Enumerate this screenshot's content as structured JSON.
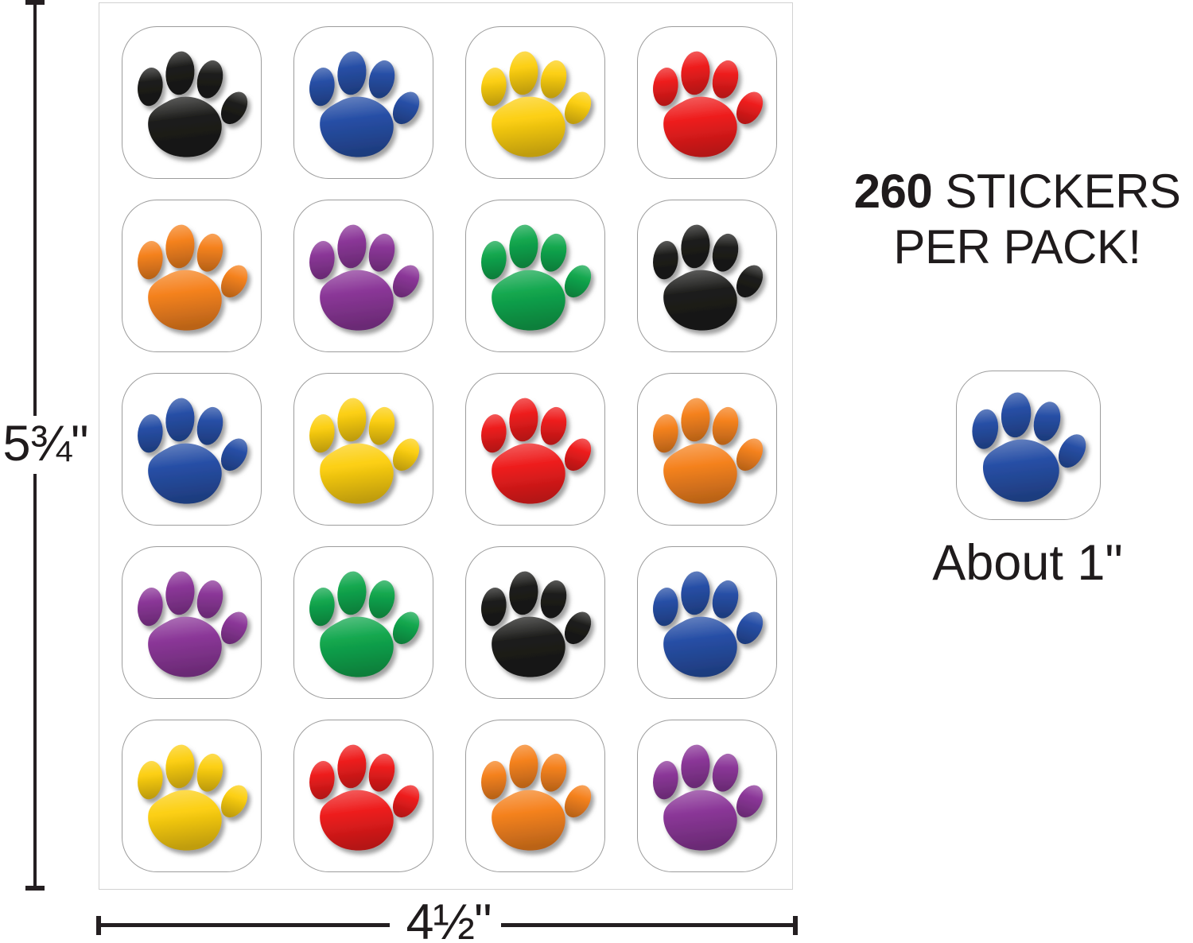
{
  "annotations": {
    "height_label": "5¾\"",
    "width_label": "4½\"",
    "sample_label": "About 1\""
  },
  "headline": {
    "count": "260",
    "rest": " STICKERS",
    "line2": "PER PACK!"
  },
  "palette": {
    "black": "#1d1d1b",
    "blue": "#274fa6",
    "yellow": "#fccf12",
    "red": "#ee1d1d",
    "orange": "#f5821f",
    "purple": "#8b3798",
    "green": "#12a74e"
  },
  "sheet_grid": {
    "rows": 5,
    "cols": 4,
    "cells": [
      "black",
      "blue",
      "yellow",
      "red",
      "orange",
      "purple",
      "green",
      "black",
      "blue",
      "yellow",
      "red",
      "orange",
      "purple",
      "green",
      "black",
      "blue",
      "yellow",
      "red",
      "orange",
      "purple"
    ]
  },
  "sample_sticker": {
    "color": "blue"
  },
  "line_color": "#241f21"
}
